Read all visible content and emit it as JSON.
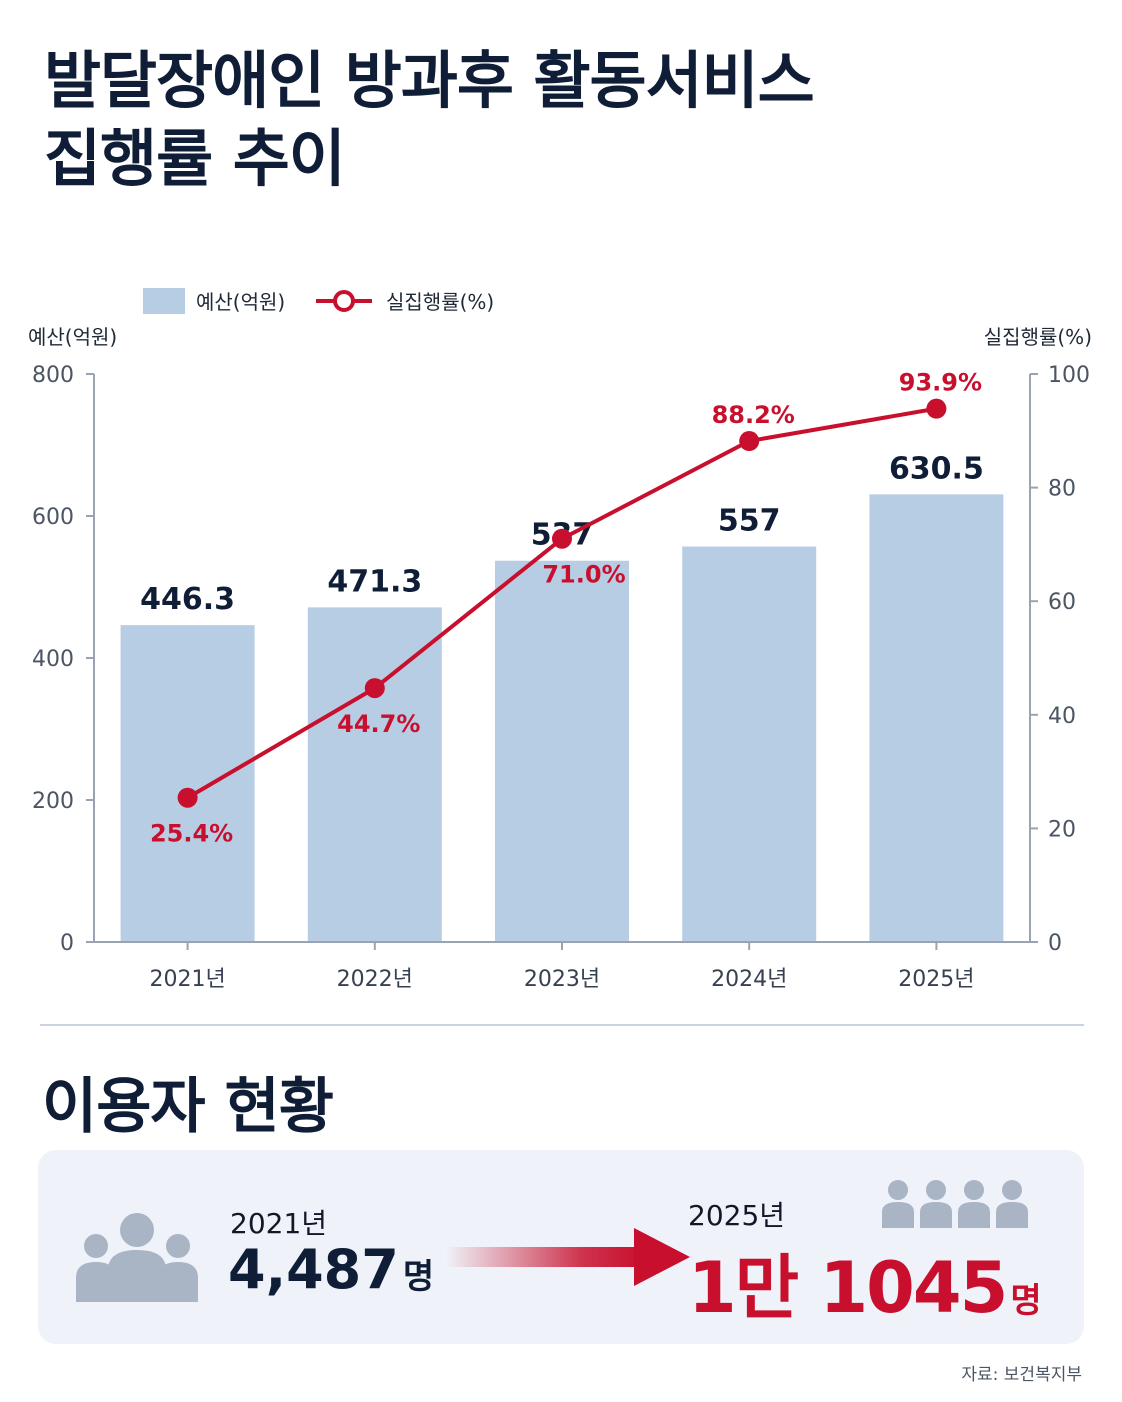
{
  "title": {
    "line1": "발달장애인 방과후 활동서비스",
    "line2": "집행률 추이"
  },
  "colors": {
    "bar": "#b7cde4",
    "line": "#c8102e",
    "axis": "#9aa3b2",
    "text_dark": "#0f1e36",
    "panel_bg": "#eff2f8",
    "icon_gray": "#a9b4c4"
  },
  "chart_data": {
    "type": "bar+line",
    "categories": [
      "2021년",
      "2022년",
      "2023년",
      "2024년",
      "2025년"
    ],
    "series": [
      {
        "name": "예산(억원)",
        "type": "bar",
        "axis": "left",
        "values": [
          446.3,
          471.3,
          537,
          557,
          630.5
        ],
        "labels": [
          "446.3",
          "471.3",
          "537",
          "557",
          "630.5"
        ]
      },
      {
        "name": "실집행률(%)",
        "type": "line",
        "axis": "right",
        "values": [
          25.4,
          44.7,
          71.0,
          88.2,
          93.9
        ],
        "labels": [
          "25.4%",
          "44.7%",
          "71.0%",
          "88.2%",
          "93.9%"
        ]
      }
    ],
    "ylabel_left": "예산(억원)",
    "ylabel_right": "실집행률(%)",
    "ylim_left": [
      0,
      800
    ],
    "yticks_left": [
      0,
      200,
      400,
      600,
      800
    ],
    "ylim_right": [
      0,
      100
    ],
    "yticks_right": [
      0,
      20,
      40,
      60,
      80,
      100
    ],
    "legend_placement": "top-left",
    "grid": false
  },
  "users": {
    "heading": "이용자 현황",
    "before": {
      "year": "2021년",
      "count": "4,487",
      "unit": "명"
    },
    "after": {
      "year": "2025년",
      "count": "1만 1045",
      "unit": "명"
    }
  },
  "source": "자료: 보건복지부"
}
